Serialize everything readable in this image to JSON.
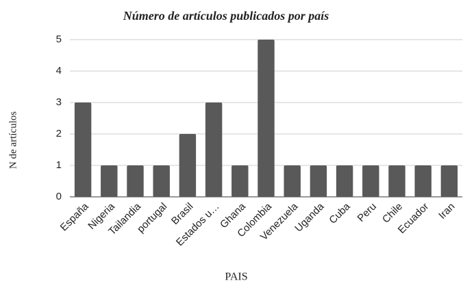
{
  "chart_data": {
    "type": "bar",
    "title": "Número de artículos publicados por país",
    "x_label": "PAIS",
    "y_label": "N de artículos",
    "categories": [
      "España",
      "Nigeria",
      "Tailandia",
      "portugal",
      "Brasil",
      "Estados u…",
      "Ghana",
      "Colombia",
      "Venezuela",
      "Uganda",
      "Cuba",
      "Peru",
      "Chile",
      "Ecuador",
      "Iran"
    ],
    "values": [
      3,
      1,
      1,
      1,
      2,
      3,
      1,
      5,
      1,
      1,
      1,
      1,
      1,
      1,
      1
    ],
    "color": "#595959",
    "ylim": [
      0,
      5
    ],
    "yticks": [
      0,
      1,
      2,
      3,
      4,
      5
    ],
    "grid": true
  }
}
